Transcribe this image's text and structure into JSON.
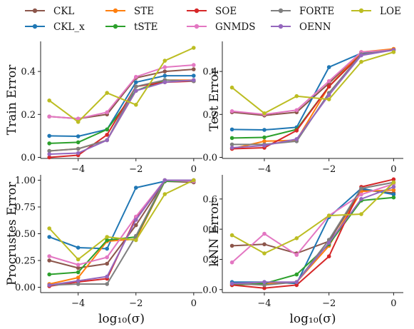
{
  "colors": {
    "CKL": "#8c564b",
    "CKL_x": "#1f77b4",
    "STE": "#ff7f0e",
    "tSTE": "#2ca02c",
    "SOE": "#d62728",
    "GNMDS": "#e377c2",
    "FORTE": "#7f7f7f",
    "OENN": "#9467bd",
    "LOE": "#bcbd22"
  },
  "legend": {
    "placement": "top",
    "entries": [
      {
        "key": "CKL",
        "label": "CKL"
      },
      {
        "key": "CKL_x",
        "label": "CKL_x"
      },
      {
        "key": "STE",
        "label": "STE"
      },
      {
        "key": "tSTE",
        "label": "tSTE"
      },
      {
        "key": "SOE",
        "label": "SOE"
      },
      {
        "key": "GNMDS",
        "label": "GNMDS"
      },
      {
        "key": "FORTE",
        "label": "FORTE"
      },
      {
        "key": "OENN",
        "label": "OENN"
      },
      {
        "key": "LOE",
        "label": "LOE"
      }
    ]
  },
  "chart_data": [
    {
      "type": "line",
      "ylabel": "Train Error",
      "xlabel": "",
      "x": [
        -5,
        -4,
        -3,
        -2,
        -1,
        0
      ],
      "xticks": [
        -4,
        -2,
        0
      ],
      "xlim": [
        -5.3,
        0.3
      ],
      "ylim": [
        -0.005,
        0.54
      ],
      "yticks": [
        0.0,
        0.2,
        0.4
      ],
      "ytick_labels": [
        "0.0",
        "0.2",
        "0.4"
      ],
      "series": [
        {
          "key": "CKL",
          "values": [
            0.19,
            0.18,
            0.2,
            0.37,
            0.4,
            0.41
          ]
        },
        {
          "key": "CKL_x",
          "values": [
            0.1,
            0.098,
            0.13,
            0.35,
            0.38,
            0.38
          ]
        },
        {
          "key": "STE",
          "values": [
            0.03,
            0.04,
            0.08,
            0.31,
            0.36,
            0.36
          ]
        },
        {
          "key": "tSTE",
          "values": [
            0.065,
            0.07,
            0.13,
            0.31,
            0.36,
            0.355
          ]
        },
        {
          "key": "SOE",
          "values": [
            0.0,
            0.01,
            0.105,
            0.33,
            0.35,
            0.355
          ]
        },
        {
          "key": "GNMDS",
          "values": [
            0.19,
            0.18,
            0.21,
            0.375,
            0.42,
            0.43
          ]
        },
        {
          "key": "FORTE",
          "values": [
            0.03,
            0.04,
            0.08,
            0.33,
            0.36,
            0.355
          ]
        },
        {
          "key": "OENN",
          "values": [
            0.015,
            0.02,
            0.08,
            0.31,
            0.35,
            0.36
          ]
        },
        {
          "key": "LOE",
          "values": [
            0.265,
            0.165,
            0.3,
            0.245,
            0.45,
            0.51
          ]
        }
      ]
    },
    {
      "type": "line",
      "ylabel": "Test Error",
      "xlabel": "",
      "x": [
        -5,
        -4,
        -3,
        -2,
        -1,
        0
      ],
      "xticks": [
        -4,
        -2,
        0
      ],
      "xlim": [
        -5.3,
        0.3
      ],
      "ylim": [
        -0.005,
        0.54
      ],
      "yticks": [
        0.0,
        0.2,
        0.4
      ],
      "ytick_labels": [
        "0.0",
        "0.2",
        "0.4"
      ],
      "series": [
        {
          "key": "CKL",
          "values": [
            0.21,
            0.195,
            0.21,
            0.345,
            0.49,
            0.5
          ]
        },
        {
          "key": "CKL_x",
          "values": [
            0.13,
            0.128,
            0.14,
            0.42,
            0.485,
            0.5
          ]
        },
        {
          "key": "STE",
          "values": [
            0.04,
            0.075,
            0.08,
            0.33,
            0.49,
            0.505
          ]
        },
        {
          "key": "tSTE",
          "values": [
            0.09,
            0.093,
            0.13,
            0.33,
            0.48,
            0.5
          ]
        },
        {
          "key": "SOE",
          "values": [
            0.04,
            0.045,
            0.125,
            0.33,
            0.48,
            0.5
          ]
        },
        {
          "key": "GNMDS",
          "values": [
            0.215,
            0.2,
            0.22,
            0.355,
            0.49,
            0.5
          ]
        },
        {
          "key": "FORTE",
          "values": [
            0.06,
            0.06,
            0.075,
            0.3,
            0.48,
            0.5
          ]
        },
        {
          "key": "OENN",
          "values": [
            0.045,
            0.055,
            0.085,
            0.29,
            0.475,
            0.5
          ]
        },
        {
          "key": "LOE",
          "values": [
            0.325,
            0.205,
            0.285,
            0.27,
            0.445,
            0.49
          ]
        }
      ]
    },
    {
      "type": "line",
      "ylabel": "Procrustes Error",
      "xlabel": "log₁₀(σ)",
      "x": [
        -5,
        -4,
        -3,
        -2,
        -1,
        0
      ],
      "xticks": [
        -4,
        -2,
        0
      ],
      "xlim": [
        -5.3,
        0.3
      ],
      "ylim": [
        -0.05,
        1.05
      ],
      "yticks": [
        0.0,
        0.25,
        0.5,
        0.75,
        1.0
      ],
      "ytick_labels": [
        "0.00",
        "0.25",
        "0.50",
        "0.75",
        "1.00"
      ],
      "series": [
        {
          "key": "CKL",
          "values": [
            0.25,
            0.18,
            0.22,
            0.58,
            0.99,
            0.98
          ]
        },
        {
          "key": "CKL_x",
          "values": [
            0.47,
            0.37,
            0.36,
            0.93,
            0.99,
            0.99
          ]
        },
        {
          "key": "STE",
          "values": [
            0.03,
            0.09,
            0.43,
            0.45,
            0.99,
            0.99
          ]
        },
        {
          "key": "tSTE",
          "values": [
            0.12,
            0.14,
            0.44,
            0.47,
            0.99,
            0.99
          ]
        },
        {
          "key": "SOE",
          "values": [
            0.01,
            0.05,
            0.08,
            0.65,
            1.0,
            1.0
          ]
        },
        {
          "key": "GNMDS",
          "values": [
            0.29,
            0.21,
            0.28,
            0.66,
            1.0,
            0.99
          ]
        },
        {
          "key": "FORTE",
          "values": [
            0.02,
            0.03,
            0.03,
            0.48,
            1.0,
            1.0
          ]
        },
        {
          "key": "OENN",
          "values": [
            0.02,
            0.06,
            0.1,
            0.63,
            1.0,
            1.0
          ]
        },
        {
          "key": "LOE",
          "values": [
            0.55,
            0.26,
            0.47,
            0.44,
            0.87,
            1.0
          ]
        }
      ]
    },
    {
      "type": "line",
      "ylabel": "kNN Error",
      "xlabel": "log₁₀(σ)",
      "x": [
        -5,
        -4,
        -3,
        -2,
        -1,
        0
      ],
      "xticks": [
        -4,
        -2,
        0
      ],
      "xlim": [
        -5.3,
        0.3
      ],
      "ylim": [
        -0.02,
        0.76
      ],
      "yticks": [
        0.0,
        0.2,
        0.4,
        0.6
      ],
      "ytick_labels": [
        "0.0",
        "0.2",
        "0.4",
        "0.6"
      ],
      "series": [
        {
          "key": "CKL",
          "values": [
            0.29,
            0.3,
            0.24,
            0.32,
            0.66,
            0.64
          ]
        },
        {
          "key": "CKL_x",
          "values": [
            0.05,
            0.05,
            0.04,
            0.48,
            0.67,
            0.63
          ]
        },
        {
          "key": "STE",
          "values": [
            0.03,
            0.04,
            0.05,
            0.29,
            0.65,
            0.66
          ]
        },
        {
          "key": "tSTE",
          "values": [
            0.03,
            0.04,
            0.1,
            0.3,
            0.59,
            0.61
          ]
        },
        {
          "key": "SOE",
          "values": [
            0.03,
            0.01,
            0.03,
            0.22,
            0.68,
            0.73
          ]
        },
        {
          "key": "GNMDS",
          "values": [
            0.18,
            0.37,
            0.23,
            0.49,
            0.63,
            0.7
          ]
        },
        {
          "key": "FORTE",
          "values": [
            0.04,
            0.03,
            0.05,
            0.33,
            0.67,
            0.71
          ]
        },
        {
          "key": "OENN",
          "values": [
            0.04,
            0.05,
            0.05,
            0.31,
            0.6,
            0.68
          ]
        },
        {
          "key": "LOE",
          "values": [
            0.36,
            0.24,
            0.34,
            0.49,
            0.5,
            0.71
          ]
        }
      ]
    }
  ]
}
